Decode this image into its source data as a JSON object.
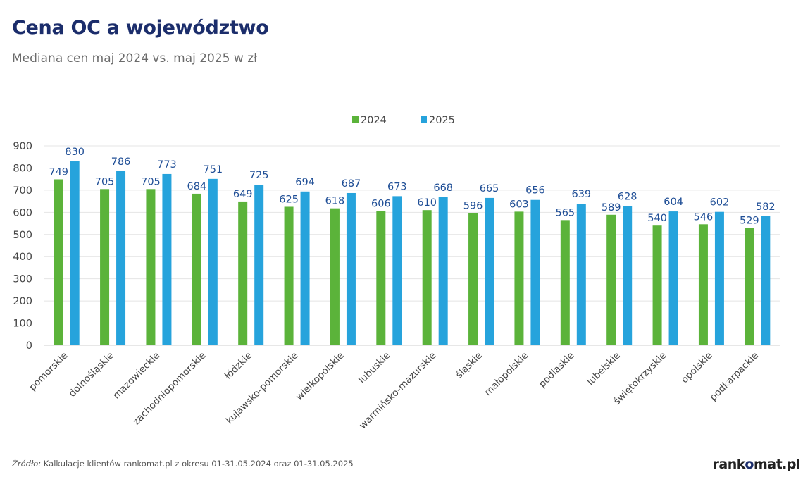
{
  "header": {
    "title": "Cena OC a województwo",
    "subtitle": "Mediana cen maj 2024 vs. maj 2025 w zł"
  },
  "footer": {
    "source_label": "Źródło:",
    "source_text": " Kalkulacje klientów rankomat.pl z okresu 01-31.05.2024 oraz 01-31.05.2025",
    "logo_left": "rank",
    "logo_mid": "o",
    "logo_right": "mat.pl"
  },
  "chart_data": {
    "type": "bar",
    "title": "Cena OC a województwo",
    "subtitle": "Mediana cen maj 2024 vs. maj 2025 w zł",
    "xlabel": "",
    "ylabel": "",
    "ylim": [
      0,
      900
    ],
    "yticks": [
      0,
      100,
      200,
      300,
      400,
      500,
      600,
      700,
      800,
      900
    ],
    "grid": true,
    "legend_position": "top-center",
    "categories": [
      "pomorskie",
      "dolnośląskie",
      "mazowieckie",
      "zachodniopomorskie",
      "łódzkie",
      "kujawsko-pomorskie",
      "wielkopolskie",
      "lubuskie",
      "warmińsko-mazurskie",
      "śląskie",
      "małopolskie",
      "podlaskie",
      "lubelskie",
      "świętokrzyskie",
      "opolskie",
      "podkarpackie"
    ],
    "series": [
      {
        "name": "2024",
        "color": "#5bb33a",
        "values": [
          749,
          705,
          705,
          684,
          649,
          625,
          618,
          606,
          610,
          596,
          603,
          565,
          589,
          540,
          546,
          529
        ]
      },
      {
        "name": "2025",
        "color": "#26a3dc",
        "values": [
          830,
          786,
          773,
          751,
          725,
          694,
          687,
          673,
          668,
          665,
          656,
          639,
          628,
          604,
          602,
          582
        ]
      }
    ],
    "label_color": "#1f4e96",
    "axis_text_color": "#444444",
    "grid_color": "#e4e4e4"
  }
}
